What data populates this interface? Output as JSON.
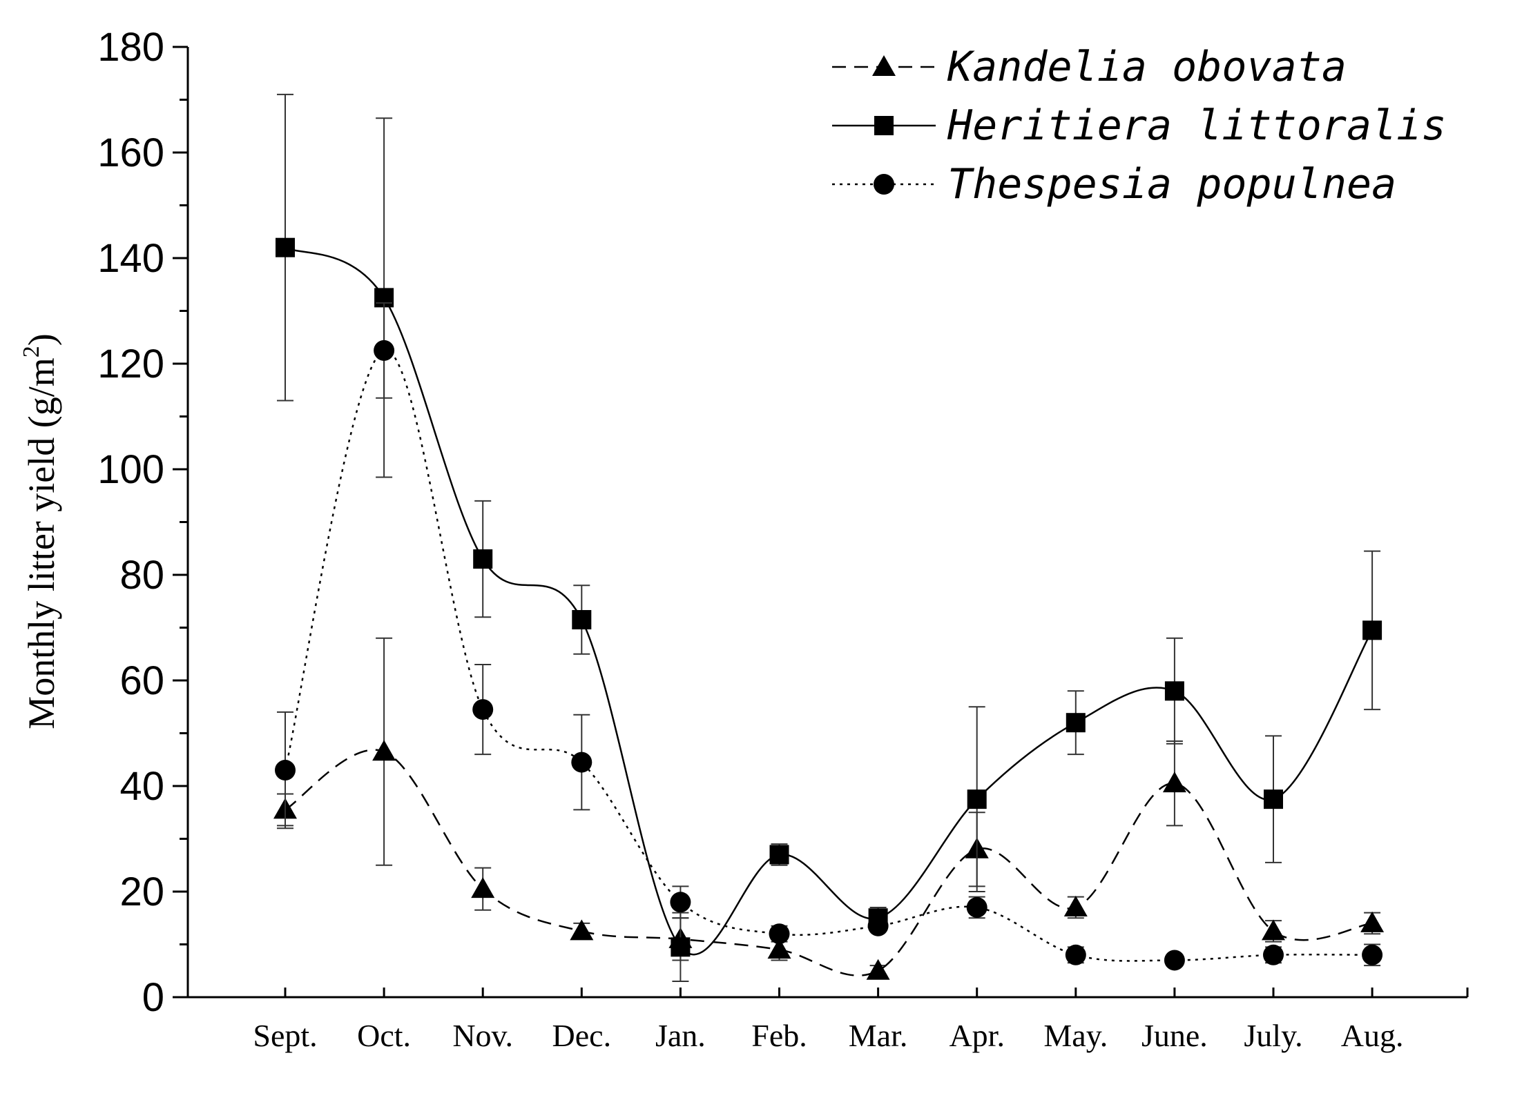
{
  "chart_data": {
    "type": "line",
    "ylabel": "Monthly litter yield (g/m",
    "ylabel_sup": "2",
    "ylabel_close": ")",
    "xlabel": "",
    "categories": [
      "Sept.",
      "Oct.",
      "Nov.",
      "Dec.",
      "Jan.",
      "Feb.",
      "Mar.",
      "Apr.",
      "May.",
      "June.",
      "July.",
      "Aug."
    ],
    "ylim": [
      0,
      180
    ],
    "yticks": [
      0,
      20,
      40,
      60,
      80,
      100,
      120,
      140,
      160,
      180
    ],
    "grid": false,
    "legend_position": "top-right",
    "series": [
      {
        "name": "Kandelia obovata",
        "marker": "triangle",
        "line_style": "dashed",
        "color": "#000000",
        "values": [
          35.5,
          46.5,
          20.5,
          12.5,
          11,
          9,
          5,
          28,
          17,
          40.5,
          12.5,
          14
        ],
        "errors": [
          3,
          21.5,
          4,
          1.5,
          4,
          2,
          1,
          7,
          2,
          8,
          2,
          2
        ]
      },
      {
        "name": "Heritiera littoralis",
        "marker": "square",
        "line_style": "solid",
        "color": "#000000",
        "values": [
          142,
          132.5,
          83,
          71.5,
          9.5,
          27,
          15,
          37.5,
          52,
          58,
          37.5,
          69.5
        ],
        "errors": [
          29,
          34,
          11,
          6.5,
          6.5,
          2,
          2,
          17.5,
          6,
          10,
          12,
          15
        ]
      },
      {
        "name": "Thespesia populnea",
        "marker": "circle",
        "line_style": "dotted",
        "color": "#000000",
        "values": [
          43,
          122.5,
          54.5,
          44.5,
          18,
          12,
          13.5,
          17,
          8,
          7,
          8,
          8
        ],
        "errors": [
          11,
          9,
          8.5,
          9,
          3,
          1.5,
          1,
          2,
          1.5,
          1,
          1.5,
          2
        ]
      }
    ]
  }
}
